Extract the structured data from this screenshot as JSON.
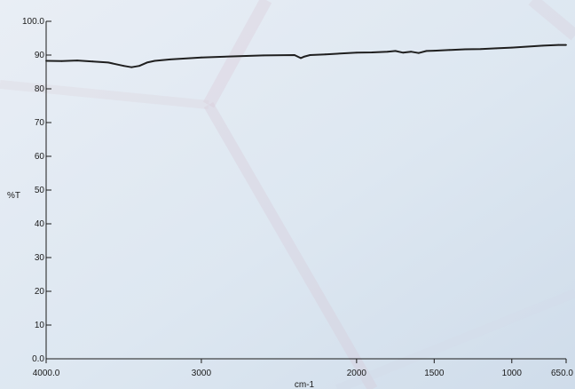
{
  "chart_data": {
    "type": "line",
    "xlabel": "cm-1",
    "ylabel": "%T",
    "xlim": [
      4000.0,
      650.0
    ],
    "ylim": [
      0.0,
      100.0
    ],
    "x_axis_reversed": true,
    "x_ticks": [
      {
        "value": 4000,
        "label": "4000.0"
      },
      {
        "value": 3000,
        "label": "3000"
      },
      {
        "value": 2000,
        "label": "2000"
      },
      {
        "value": 1500,
        "label": "1500"
      },
      {
        "value": 1000,
        "label": "1000"
      },
      {
        "value": 650,
        "label": "650.0"
      }
    ],
    "y_ticks": [
      {
        "value": 0,
        "label": "0.0"
      },
      {
        "value": 10,
        "label": "10"
      },
      {
        "value": 20,
        "label": "20"
      },
      {
        "value": 30,
        "label": "30"
      },
      {
        "value": 40,
        "label": "40"
      },
      {
        "value": 50,
        "label": "50"
      },
      {
        "value": 60,
        "label": "60"
      },
      {
        "value": 70,
        "label": "70"
      },
      {
        "value": 80,
        "label": "80"
      },
      {
        "value": 90,
        "label": "90"
      },
      {
        "value": 100,
        "label": "100.0"
      }
    ],
    "grid": false,
    "series": [
      {
        "color": "#1f1f1f",
        "x": [
          4000,
          3900,
          3800,
          3700,
          3600,
          3500,
          3450,
          3400,
          3350,
          3300,
          3200,
          3000,
          2800,
          2600,
          2400,
          2360,
          2340,
          2300,
          2200,
          2000,
          1900,
          1800,
          1750,
          1700,
          1650,
          1600,
          1550,
          1500,
          1400,
          1300,
          1200,
          1100,
          1000,
          900,
          800,
          700,
          650
        ],
        "y": [
          88.3,
          88.2,
          88.4,
          88.1,
          87.8,
          86.8,
          86.4,
          86.8,
          87.8,
          88.3,
          88.7,
          89.3,
          89.6,
          89.9,
          90.0,
          89.1,
          89.5,
          90.0,
          90.2,
          90.7,
          90.8,
          91.0,
          91.2,
          90.7,
          91.0,
          90.6,
          91.2,
          91.3,
          91.5,
          91.7,
          91.8,
          92.0,
          92.2,
          92.5,
          92.8,
          93.0,
          93.0
        ]
      }
    ]
  }
}
